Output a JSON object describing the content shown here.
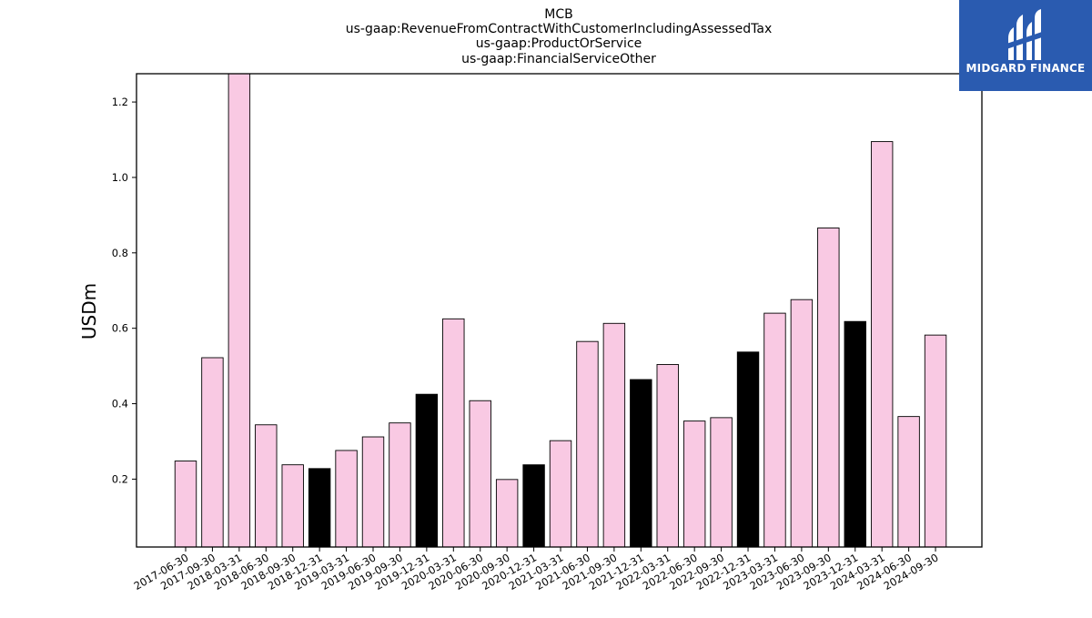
{
  "brand": {
    "name": "MIDGARD FINANCE",
    "bg_color": "#2a5bb0",
    "icon": "midgard-finance-logo-icon"
  },
  "chart_data": {
    "type": "bar",
    "title_lines": [
      "MCB",
      "us-gaap:RevenueFromContractWithCustomerIncludingAssessedTax",
      "us-gaap:ProductOrService",
      "us-gaap:FinancialServiceOther"
    ],
    "xlabel": "",
    "ylabel": "USDm",
    "ylim": [
      0.02,
      1.275
    ],
    "yticks": [
      0.2,
      0.4,
      0.6,
      0.8,
      1.0,
      1.2
    ],
    "ytick_labels": [
      "0.2",
      "0.4",
      "0.6",
      "0.8",
      "1.0",
      "1.2"
    ],
    "grid": false,
    "colors": {
      "quarter": "#f9c9e3",
      "year_end": "#000000",
      "edge": "#000000"
    },
    "categories": [
      "2017-06-30",
      "2017-09-30",
      "2018-03-31",
      "2018-06-30",
      "2018-09-30",
      "2018-12-31",
      "2019-03-31",
      "2019-06-30",
      "2019-09-30",
      "2019-12-31",
      "2020-03-31",
      "2020-06-30",
      "2020-09-30",
      "2020-12-31",
      "2021-03-31",
      "2021-06-30",
      "2021-09-30",
      "2021-12-31",
      "2022-03-31",
      "2022-06-30",
      "2022-09-30",
      "2022-12-31",
      "2023-03-31",
      "2023-06-30",
      "2023-09-30",
      "2023-12-31",
      "2024-03-31",
      "2024-06-30",
      "2024-09-30"
    ],
    "values": [
      0.248,
      0.522,
      1.3,
      0.344,
      0.238,
      0.228,
      0.276,
      0.312,
      0.349,
      0.425,
      0.625,
      0.408,
      0.199,
      0.238,
      0.302,
      0.565,
      0.613,
      0.464,
      0.504,
      0.354,
      0.363,
      0.537,
      0.64,
      0.676,
      0.866,
      0.618,
      1.095,
      0.366,
      0.582
    ],
    "bar_kind": [
      "quarter",
      "quarter",
      "quarter",
      "quarter",
      "quarter",
      "year_end",
      "quarter",
      "quarter",
      "quarter",
      "year_end",
      "quarter",
      "quarter",
      "quarter",
      "year_end",
      "quarter",
      "quarter",
      "quarter",
      "year_end",
      "quarter",
      "quarter",
      "quarter",
      "year_end",
      "quarter",
      "quarter",
      "quarter",
      "year_end",
      "quarter",
      "quarter",
      "quarter"
    ]
  }
}
